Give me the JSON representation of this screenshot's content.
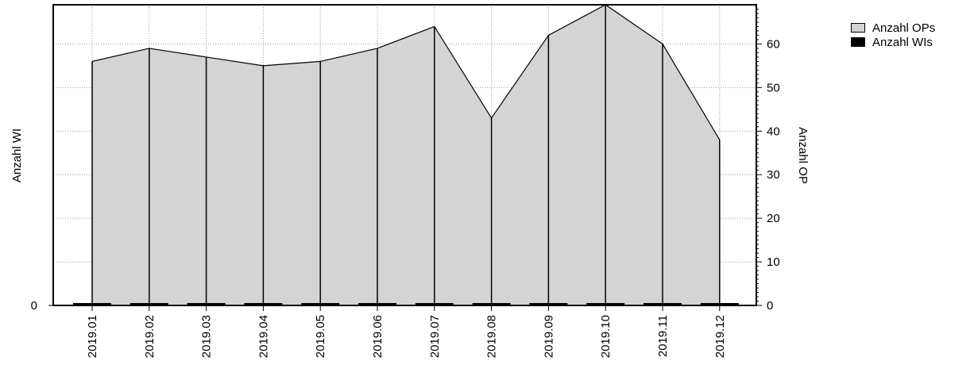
{
  "chart_data": {
    "type": "area",
    "categories": [
      "2019.01",
      "2019.02",
      "2019.03",
      "2019.04",
      "2019.05",
      "2019.06",
      "2019.07",
      "2019.08",
      "2019.09",
      "2019.10",
      "2019.11",
      "2019.12"
    ],
    "series": [
      {
        "name": "Anzahl OPs",
        "axis": "right",
        "values": [
          56,
          59,
          57,
          55,
          56,
          59,
          64,
          43,
          62,
          69,
          60,
          38
        ],
        "color": "#d4d4d4"
      },
      {
        "name": "Anzahl WIs",
        "axis": "left",
        "values": [
          0,
          0,
          0,
          0,
          0,
          0,
          0,
          0,
          0,
          0,
          0,
          0
        ],
        "color": "#000000"
      }
    ],
    "y_left": {
      "label": "Anzahl WI",
      "ticks": [
        0
      ]
    },
    "y_right": {
      "label": "Anzahl OP",
      "ylim": [
        0,
        69
      ],
      "ticks": [
        0,
        10,
        20,
        30,
        40,
        50,
        60
      ]
    },
    "grid": true,
    "legend": "top-right"
  },
  "legend": {
    "items": [
      {
        "label": "Anzahl OPs",
        "color": "#d4d4d4"
      },
      {
        "label": "Anzahl WIs",
        "color": "#000000"
      }
    ]
  }
}
